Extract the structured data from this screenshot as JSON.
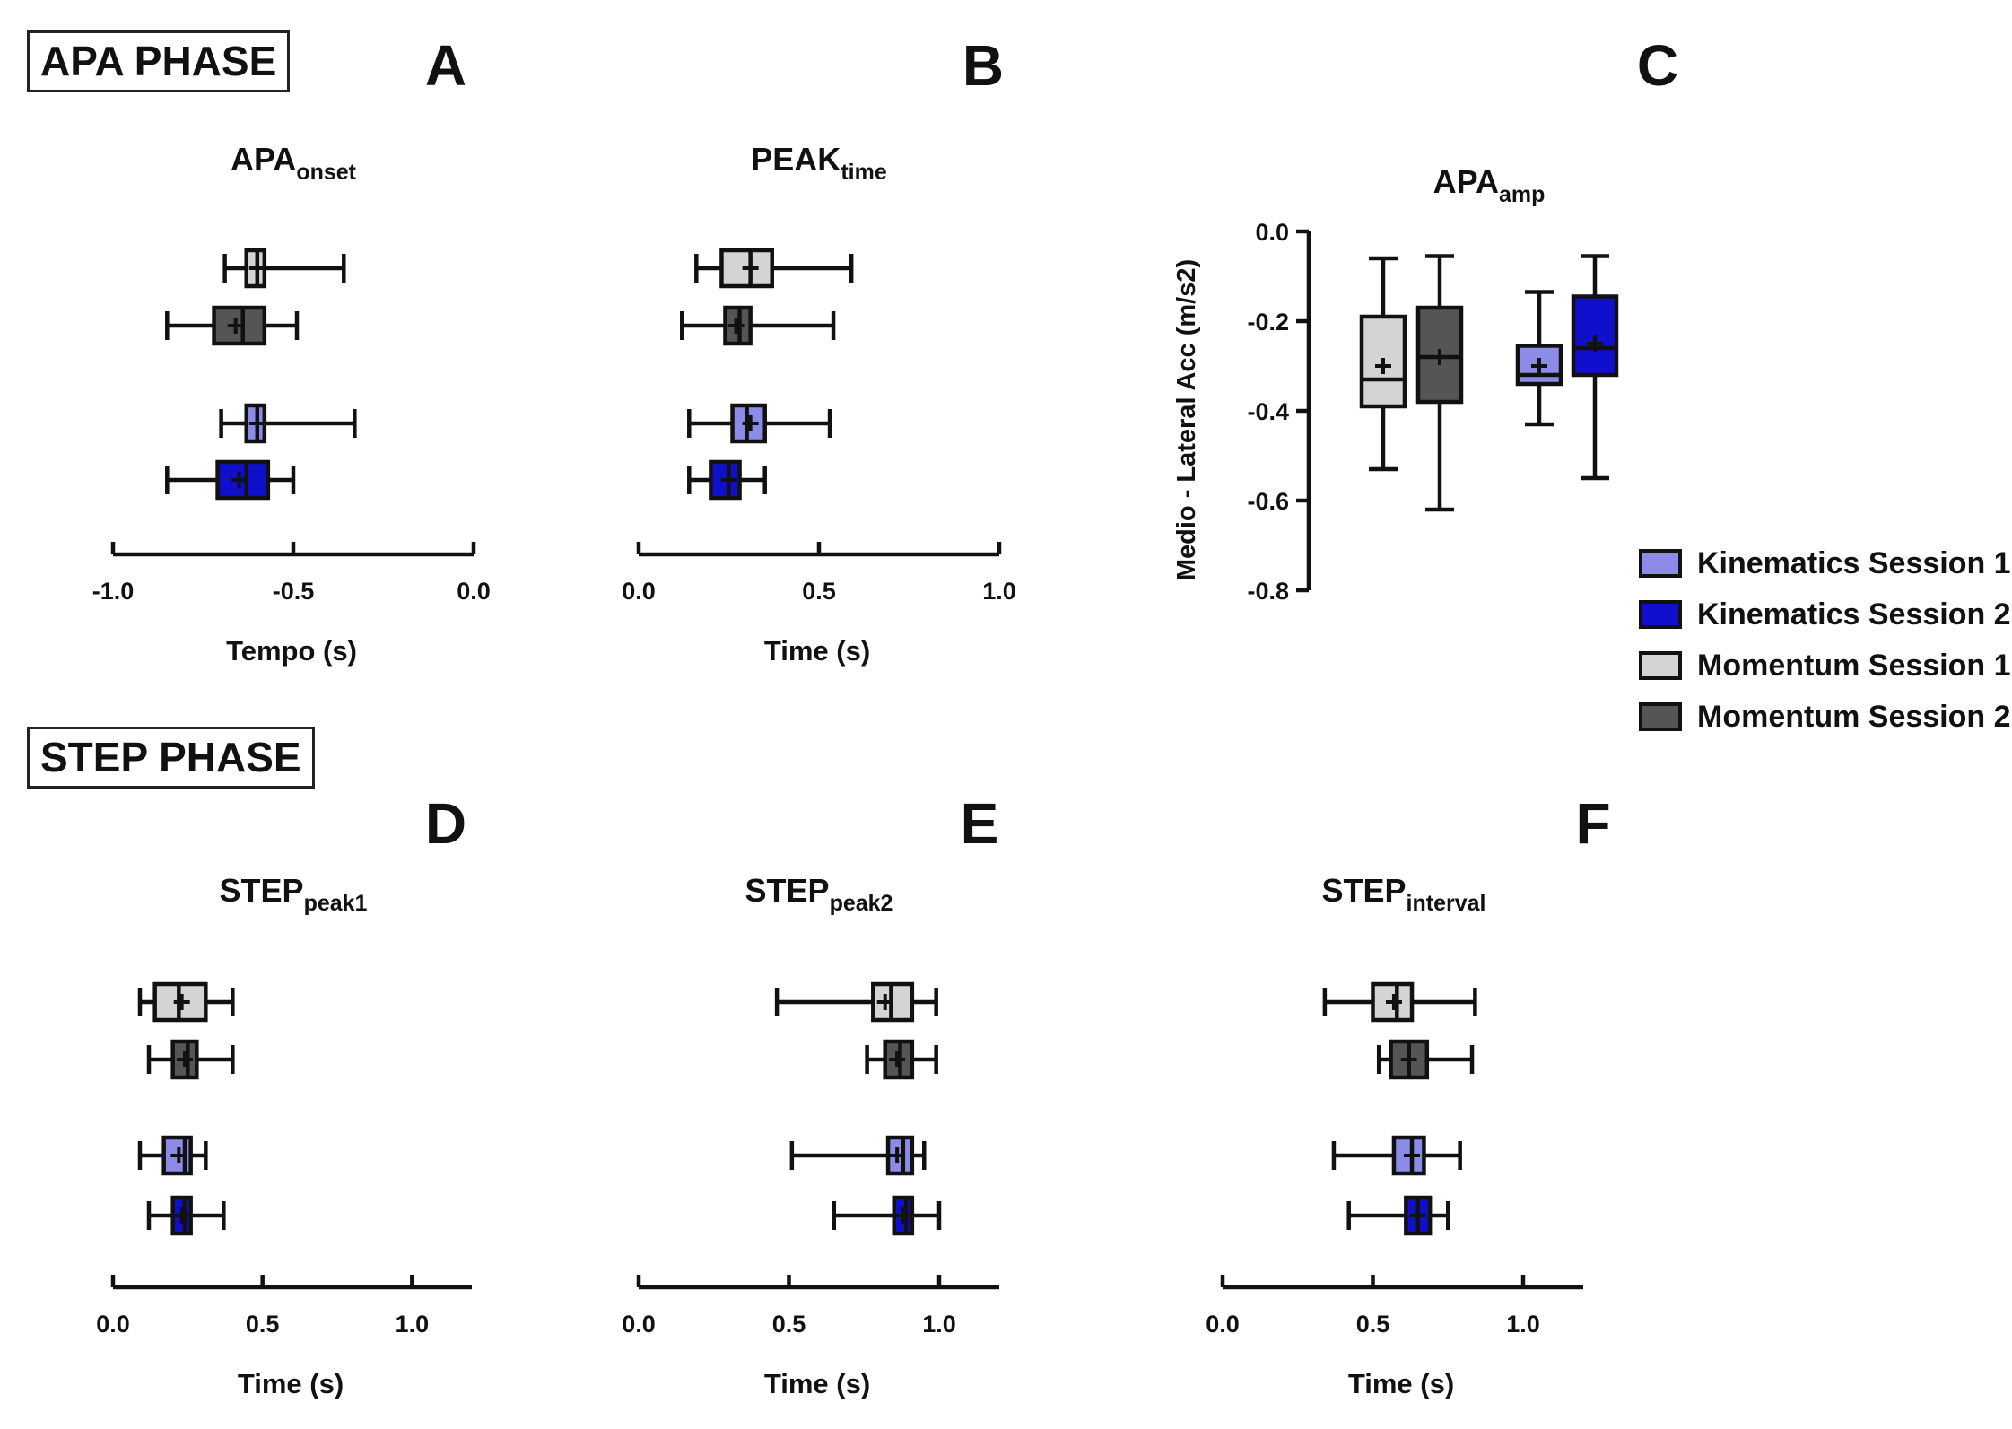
{
  "sections": {
    "apa_phase": "APA PHASE",
    "step_phase": "STEP PHASE"
  },
  "colors": {
    "kin1": "#8c8ce8",
    "kin2": "#1010cc",
    "mom1": "#d4d4d4",
    "mom2": "#555555"
  },
  "legend": [
    {
      "label": "Kinematics Session 1",
      "color_key": "kin1"
    },
    {
      "label": "Kinematics Session 2",
      "color_key": "kin2"
    },
    {
      "label": "Momentum Session 1",
      "color_key": "mom1"
    },
    {
      "label": "Momentum Session 2",
      "color_key": "mom2"
    }
  ],
  "chart_data": [
    {
      "id": "A",
      "panel_letter": "A",
      "type": "box-horizontal",
      "title": "APA",
      "title_sub": "onset",
      "xlabel": "Tempo (s)",
      "xlim": [
        -1.0,
        0.0
      ],
      "ticks": [
        -1.0,
        -0.5,
        0.0
      ],
      "tick_labels": [
        "-1.0",
        "-0.5",
        "0.0"
      ],
      "boxes": [
        {
          "series": "Momentum Session 1",
          "color_key": "mom1",
          "min": -0.69,
          "q1": -0.63,
          "median": -0.6,
          "q3": -0.58,
          "max": -0.36,
          "mean": -0.6
        },
        {
          "series": "Momentum Session 2",
          "color_key": "mom2",
          "min": -0.85,
          "q1": -0.72,
          "median": -0.64,
          "q3": -0.58,
          "max": -0.49,
          "mean": -0.66
        },
        {
          "series": "Kinematics Session 1",
          "color_key": "kin1",
          "min": -0.7,
          "q1": -0.63,
          "median": -0.6,
          "q3": -0.58,
          "max": -0.33,
          "mean": -0.6
        },
        {
          "series": "Kinematics Session 2",
          "color_key": "kin2",
          "min": -0.85,
          "q1": -0.71,
          "median": -0.63,
          "q3": -0.57,
          "max": -0.5,
          "mean": -0.65
        }
      ]
    },
    {
      "id": "B",
      "panel_letter": "B",
      "type": "box-horizontal",
      "title": "PEAK",
      "title_sub": "time",
      "xlabel": "Time (s)",
      "xlim": [
        0.0,
        1.0
      ],
      "ticks": [
        0.0,
        0.5,
        1.0
      ],
      "tick_labels": [
        "0.0",
        "0.5",
        "1.0"
      ],
      "boxes": [
        {
          "series": "Momentum Session 1",
          "color_key": "mom1",
          "min": 0.16,
          "q1": 0.23,
          "median": 0.31,
          "q3": 0.37,
          "max": 0.59,
          "mean": 0.31
        },
        {
          "series": "Momentum Session 2",
          "color_key": "mom2",
          "min": 0.12,
          "q1": 0.24,
          "median": 0.28,
          "q3": 0.31,
          "max": 0.54,
          "mean": 0.27
        },
        {
          "series": "Kinematics Session 1",
          "color_key": "kin1",
          "min": 0.14,
          "q1": 0.26,
          "median": 0.3,
          "q3": 0.35,
          "max": 0.53,
          "mean": 0.31
        },
        {
          "series": "Kinematics Session 2",
          "color_key": "kin2",
          "min": 0.14,
          "q1": 0.2,
          "median": 0.25,
          "q3": 0.28,
          "max": 0.35,
          "mean": 0.25
        }
      ]
    },
    {
      "id": "C",
      "panel_letter": "C",
      "type": "box-vertical",
      "title": "APA",
      "title_sub": "amp",
      "ylabel": "Medio - Lateral Acc  (m/s2)",
      "ylim": [
        -0.8,
        0.0
      ],
      "ticks": [
        0.0,
        -0.2,
        -0.4,
        -0.6,
        -0.8
      ],
      "tick_labels": [
        "0.0",
        "-0.2",
        "-0.4",
        "-0.6",
        "-0.8"
      ],
      "boxes": [
        {
          "series": "Momentum Session 1",
          "color_key": "mom1",
          "min": -0.53,
          "q1": -0.39,
          "median": -0.33,
          "q3": -0.19,
          "max": -0.06,
          "mean": -0.3
        },
        {
          "series": "Momentum Session 2",
          "color_key": "mom2",
          "min": -0.62,
          "q1": -0.38,
          "median": -0.28,
          "q3": -0.17,
          "max": -0.055,
          "mean": -0.28
        },
        {
          "series": "Kinematics Session 1",
          "color_key": "kin1",
          "min": -0.43,
          "q1": -0.34,
          "median": -0.32,
          "q3": -0.255,
          "max": -0.135,
          "mean": -0.3
        },
        {
          "series": "Kinematics Session 2",
          "color_key": "kin2",
          "min": -0.55,
          "q1": -0.32,
          "median": -0.26,
          "q3": -0.145,
          "max": -0.055,
          "mean": -0.25
        }
      ]
    },
    {
      "id": "D",
      "panel_letter": "D",
      "type": "box-horizontal",
      "title": "STEP",
      "title_sub": "peak1",
      "xlabel": "Time (s)",
      "xlim": [
        0.0,
        1.2
      ],
      "ticks": [
        0.0,
        0.5,
        1.0
      ],
      "tick_labels": [
        "0.0",
        "0.5",
        "1.0"
      ],
      "boxes": [
        {
          "series": "Momentum Session 1",
          "color_key": "mom1",
          "min": 0.09,
          "q1": 0.14,
          "median": 0.22,
          "q3": 0.31,
          "max": 0.4,
          "mean": 0.23
        },
        {
          "series": "Momentum Session 2",
          "color_key": "mom2",
          "min": 0.12,
          "q1": 0.2,
          "median": 0.25,
          "q3": 0.28,
          "max": 0.4,
          "mean": 0.24
        },
        {
          "series": "Kinematics Session 1",
          "color_key": "kin1",
          "min": 0.09,
          "q1": 0.17,
          "median": 0.24,
          "q3": 0.26,
          "max": 0.31,
          "mean": 0.22
        },
        {
          "series": "Kinematics Session 2",
          "color_key": "kin2",
          "min": 0.12,
          "q1": 0.2,
          "median": 0.24,
          "q3": 0.26,
          "max": 0.37,
          "mean": 0.23
        }
      ]
    },
    {
      "id": "E",
      "panel_letter": "E",
      "type": "box-horizontal",
      "title": "STEP",
      "title_sub": "peak2",
      "xlabel": "Time (s)",
      "xlim": [
        0.0,
        1.2
      ],
      "ticks": [
        0.0,
        0.5,
        1.0
      ],
      "tick_labels": [
        "0.0",
        "0.5",
        "1.0"
      ],
      "boxes": [
        {
          "series": "Momentum Session 1",
          "color_key": "mom1",
          "min": 0.46,
          "q1": 0.78,
          "median": 0.84,
          "q3": 0.91,
          "max": 0.99,
          "mean": 0.82
        },
        {
          "series": "Momentum Session 2",
          "color_key": "mom2",
          "min": 0.76,
          "q1": 0.82,
          "median": 0.87,
          "q3": 0.91,
          "max": 0.99,
          "mean": 0.86
        },
        {
          "series": "Kinematics Session 1",
          "color_key": "kin1",
          "min": 0.51,
          "q1": 0.83,
          "median": 0.88,
          "q3": 0.91,
          "max": 0.95,
          "mean": 0.86
        },
        {
          "series": "Kinematics Session 2",
          "color_key": "kin2",
          "min": 0.65,
          "q1": 0.85,
          "median": 0.89,
          "q3": 0.91,
          "max": 1.0,
          "mean": 0.88
        }
      ]
    },
    {
      "id": "F",
      "panel_letter": "F",
      "type": "box-horizontal",
      "title": "STEP",
      "title_sub": "interval",
      "xlabel": "Time (s)",
      "xlim": [
        0.0,
        1.2
      ],
      "ticks": [
        0.0,
        0.5,
        1.0
      ],
      "tick_labels": [
        "0.0",
        "0.5",
        "1.0"
      ],
      "boxes": [
        {
          "series": "Momentum Session 1",
          "color_key": "mom1",
          "min": 0.34,
          "q1": 0.5,
          "median": 0.58,
          "q3": 0.63,
          "max": 0.84,
          "mean": 0.57
        },
        {
          "series": "Momentum Session 2",
          "color_key": "mom2",
          "min": 0.52,
          "q1": 0.56,
          "median": 0.62,
          "q3": 0.68,
          "max": 0.83,
          "mean": 0.62
        },
        {
          "series": "Kinematics Session 1",
          "color_key": "kin1",
          "min": 0.37,
          "q1": 0.57,
          "median": 0.63,
          "q3": 0.67,
          "max": 0.79,
          "mean": 0.63
        },
        {
          "series": "Kinematics Session 2",
          "color_key": "kin2",
          "min": 0.42,
          "q1": 0.61,
          "median": 0.65,
          "q3": 0.69,
          "max": 0.75,
          "mean": 0.65
        }
      ]
    }
  ]
}
